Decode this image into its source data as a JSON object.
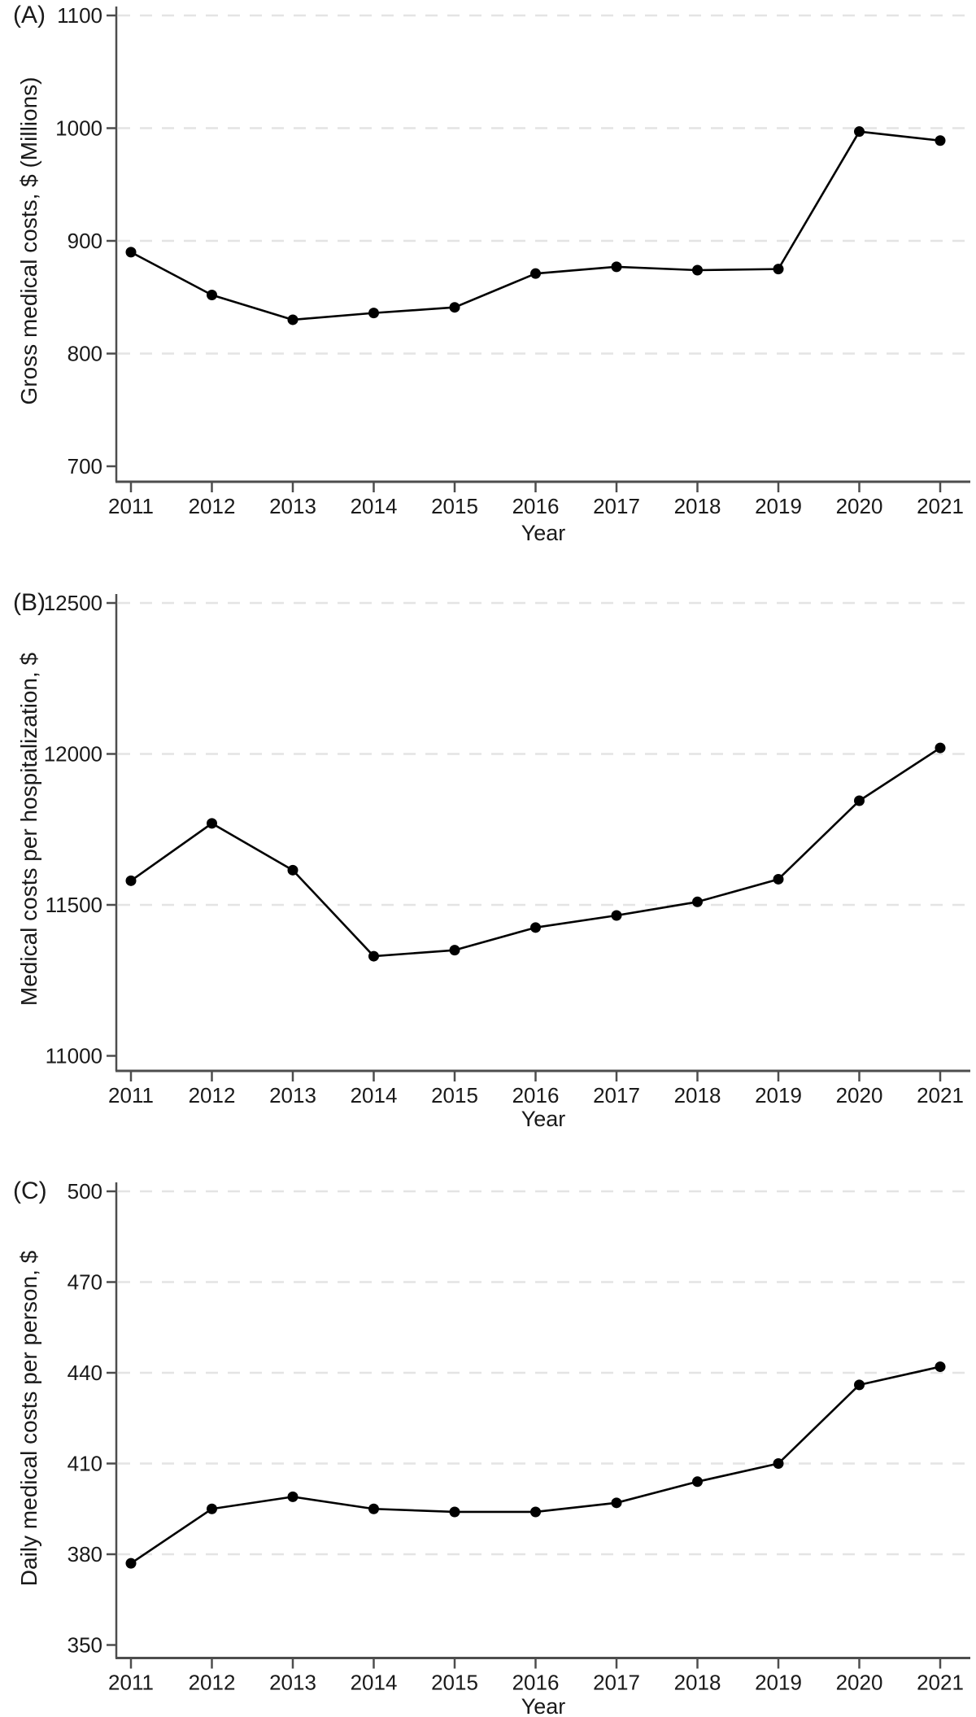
{
  "figure": {
    "background": "#ffffff",
    "text_color": "#1a1a1a",
    "axis_color": "#4d4d4d",
    "gridline_color": "#e4e4e4",
    "series_color": "#000000"
  },
  "chart_data": [
    {
      "type": "line",
      "panel_label": "(A)",
      "ylabel": "Gross medical costs, $ (Millions)",
      "xlabel": "Year",
      "x": [
        2011,
        2012,
        2013,
        2014,
        2015,
        2016,
        2017,
        2018,
        2019,
        2020,
        2021
      ],
      "values": [
        890,
        852,
        830,
        836,
        841,
        871,
        877,
        874,
        875,
        997,
        989
      ],
      "yticks": [
        700,
        800,
        900,
        1000,
        1100
      ],
      "ylim": [
        700,
        1100
      ],
      "grid": "horizontal dashed at all ticks except lowest",
      "legend": "none",
      "marker": "filled-circle"
    },
    {
      "type": "line",
      "panel_label": "(B)",
      "ylabel": "Medical costs per hospitalization, $",
      "xlabel": "Year",
      "x": [
        2011,
        2012,
        2013,
        2014,
        2015,
        2016,
        2017,
        2018,
        2019,
        2020,
        2021
      ],
      "values": [
        11580,
        11770,
        11615,
        11330,
        11350,
        11425,
        11465,
        11510,
        11585,
        11845,
        12020
      ],
      "yticks": [
        11000,
        11500,
        12000,
        12500
      ],
      "ylim": [
        11000,
        12500
      ],
      "grid": "horizontal dashed at all ticks except lowest",
      "legend": "none",
      "marker": "filled-circle"
    },
    {
      "type": "line",
      "panel_label": "(C)",
      "ylabel": "Daily medical costs per person, $",
      "xlabel": "Year",
      "x": [
        2011,
        2012,
        2013,
        2014,
        2015,
        2016,
        2017,
        2018,
        2019,
        2020,
        2021
      ],
      "values": [
        377,
        395,
        399,
        395,
        394,
        394,
        397,
        404,
        410,
        436,
        442
      ],
      "yticks": [
        350,
        380,
        410,
        440,
        470,
        500
      ],
      "ylim": [
        350,
        500
      ],
      "grid": "horizontal dashed at all ticks except lowest",
      "legend": "none",
      "marker": "filled-circle"
    }
  ]
}
